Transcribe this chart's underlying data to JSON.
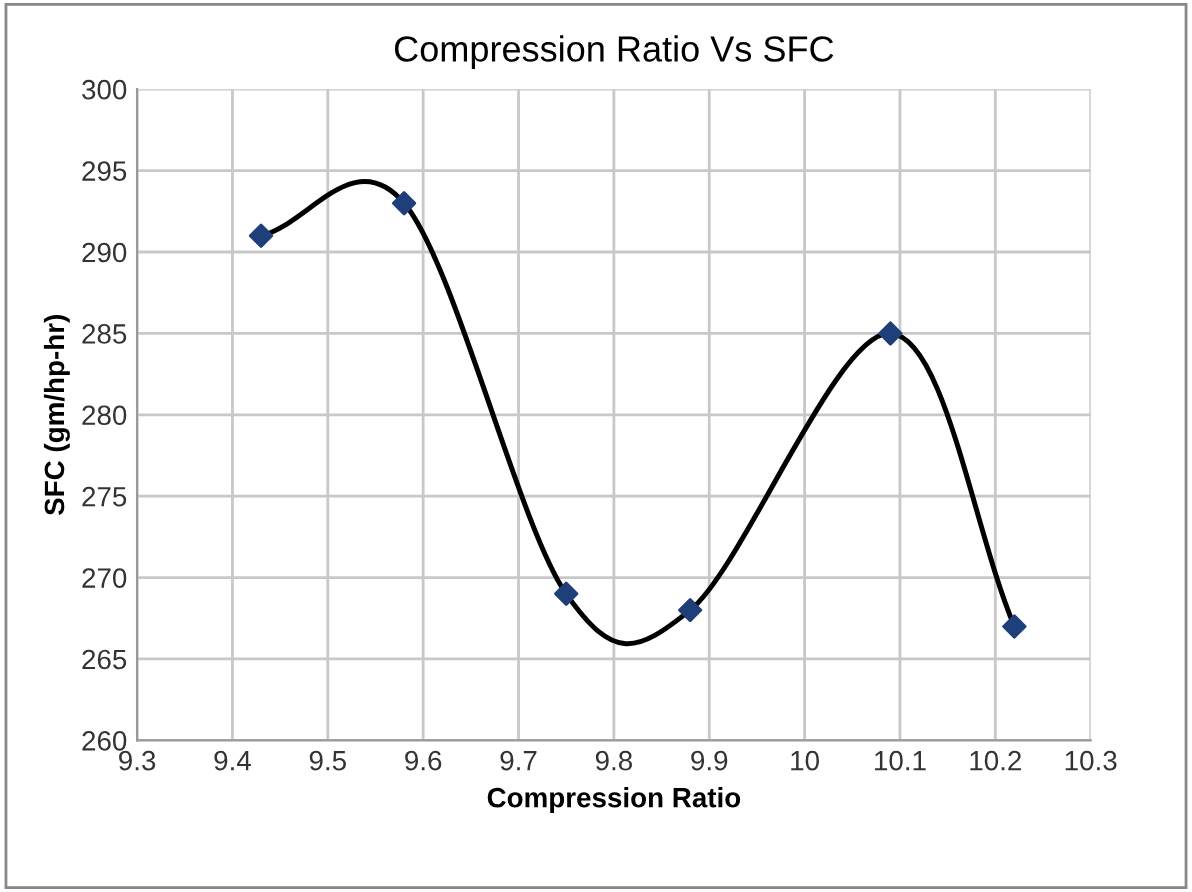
{
  "chart_data": {
    "type": "line",
    "title": "Compression Ratio Vs SFC",
    "xlabel": "Compression Ratio",
    "ylabel": "SFC (gm/hp-hr)",
    "series": [
      {
        "color": "#000000",
        "colors": [
          "#1f3f7a",
          "#1f3f7a",
          "#1f3f7a",
          "#1f3f7a",
          "#1f3f7a",
          "#1f3f7a"
        ],
        "x": [
          9.43,
          9.58,
          9.75,
          9.88,
          10.09,
          10.22
        ],
        "values": [
          291,
          293,
          269,
          268,
          285,
          267
        ]
      }
    ],
    "xlim": [
      9.3,
      10.3
    ],
    "xticks": [
      9.3,
      9.4,
      9.5,
      9.6,
      9.7,
      9.8,
      9.9,
      10,
      10.1,
      10.2,
      10.3
    ],
    "ylim": [
      260,
      300
    ],
    "yticks": [
      260,
      265,
      270,
      275,
      280,
      285,
      290,
      295,
      300
    ],
    "grid": true,
    "marker": "diamond",
    "line_style": "solid",
    "legend": false
  }
}
